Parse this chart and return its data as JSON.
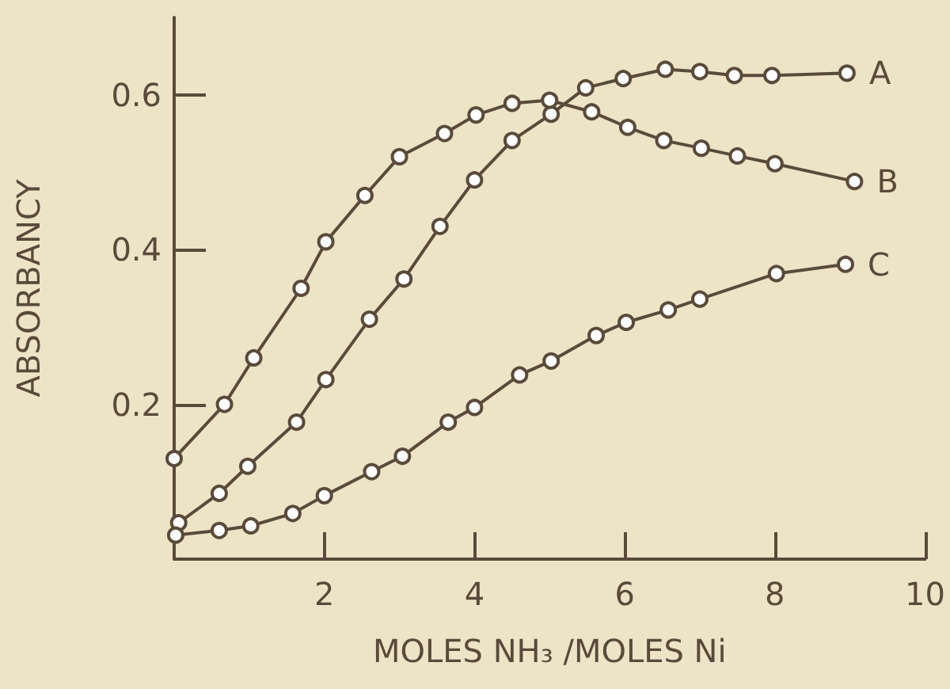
{
  "chart_data": {
    "type": "line",
    "xlabel": "MOLES NH₃ /MOLES Ni",
    "ylabel": "ABSORBANCY",
    "xlim": [
      0,
      10
    ],
    "xticks": [
      2,
      4,
      6,
      8,
      10
    ],
    "ylim": [
      0,
      0.7
    ],
    "yticks": [
      0.2,
      0.4,
      0.6
    ],
    "grid": false,
    "legend": false,
    "marker": "circle",
    "line_style": "solid",
    "series": [
      {
        "name": "A",
        "color": "#5a4a3a",
        "x": [
          0.06,
          0.6,
          0.98,
          1.63,
          2.02,
          2.6,
          3.06,
          3.54,
          4.0,
          4.5,
          5.02,
          5.48,
          5.98,
          6.54,
          7.0,
          7.46,
          7.96,
          8.96
        ],
        "values": [
          0.047,
          0.085,
          0.12,
          0.177,
          0.232,
          0.31,
          0.362,
          0.43,
          0.49,
          0.541,
          0.575,
          0.609,
          0.621,
          0.633,
          0.63,
          0.625,
          0.625,
          0.628
        ]
      },
      {
        "name": "B",
        "color": "#5a4a3a",
        "x": [
          0,
          0.67,
          1.06,
          1.69,
          2.02,
          2.54,
          3.0,
          3.6,
          4.02,
          4.5,
          5.0,
          5.56,
          6.04,
          6.52,
          7.02,
          7.5,
          8.0,
          9.06
        ],
        "values": [
          0.13,
          0.2,
          0.26,
          0.35,
          0.41,
          0.47,
          0.52,
          0.55,
          0.574,
          0.589,
          0.593,
          0.578,
          0.558,
          0.541,
          0.531,
          0.521,
          0.511,
          0.488
        ]
      },
      {
        "name": "C",
        "color": "#5a4a3a",
        "x": [
          0.02,
          0.6,
          1.02,
          1.58,
          2.0,
          2.63,
          3.04,
          3.65,
          4.0,
          4.6,
          5.02,
          5.62,
          6.02,
          6.58,
          7.0,
          8.02,
          8.94
        ],
        "values": [
          0.031,
          0.037,
          0.043,
          0.059,
          0.082,
          0.113,
          0.133,
          0.177,
          0.196,
          0.238,
          0.256,
          0.289,
          0.306,
          0.322,
          0.336,
          0.369,
          0.381
        ]
      }
    ]
  }
}
